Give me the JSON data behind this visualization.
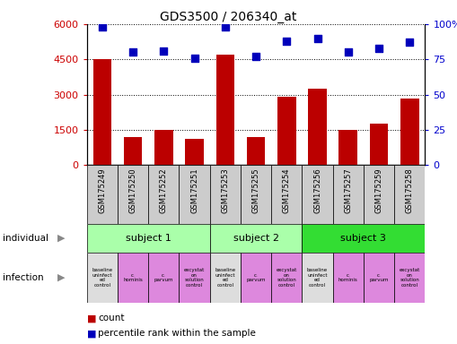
{
  "title": "GDS3500 / 206340_at",
  "samples": [
    "GSM175249",
    "GSM175250",
    "GSM175252",
    "GSM175251",
    "GSM175253",
    "GSM175255",
    "GSM175254",
    "GSM175256",
    "GSM175257",
    "GSM175259",
    "GSM175258"
  ],
  "counts": [
    4500,
    1200,
    1500,
    1100,
    4700,
    1200,
    2900,
    3250,
    1500,
    1750,
    2850
  ],
  "percentile_ranks": [
    98,
    80,
    81,
    76,
    98,
    77,
    88,
    90,
    80,
    83,
    87
  ],
  "ylim_left": [
    0,
    6000
  ],
  "ylim_right": [
    0,
    100
  ],
  "yticks_left": [
    0,
    1500,
    3000,
    4500,
    6000
  ],
  "yticks_right": [
    0,
    25,
    50,
    75,
    100
  ],
  "bar_color": "#bb0000",
  "dot_color": "#0000bb",
  "subject_groups": [
    {
      "label": "subject 1",
      "start": 0,
      "end": 3,
      "color": "#aaffaa"
    },
    {
      "label": "subject 2",
      "start": 4,
      "end": 6,
      "color": "#aaffaa"
    },
    {
      "label": "subject 3",
      "start": 7,
      "end": 10,
      "color": "#33dd33"
    }
  ],
  "infection_labels": [
    "baseline\nuninfect\ned\ncontrol",
    "c.\nhominis",
    "c.\nparvum",
    "excystat\non\nsolution\ncontrol",
    "baseline\nuninfect\ned\ncontrol",
    "c.\nparvum",
    "excystat\non\nsolution\ncontrol",
    "baseline\nuninfect\ned\ncontrol",
    "c.\nhominis",
    "c.\nparvum",
    "excystat\non\nsolution\ncontrol"
  ],
  "infection_colors": [
    "#dddddd",
    "#dd88dd",
    "#dd88dd",
    "#dd88dd",
    "#dddddd",
    "#dd88dd",
    "#dd88dd",
    "#dddddd",
    "#dd88dd",
    "#dd88dd",
    "#dd88dd"
  ],
  "left_label_color": "#cc0000",
  "right_label_color": "#0000cc",
  "sample_box_color": "#cccccc",
  "fig_width": 5.09,
  "fig_height": 3.84,
  "dpi": 100
}
